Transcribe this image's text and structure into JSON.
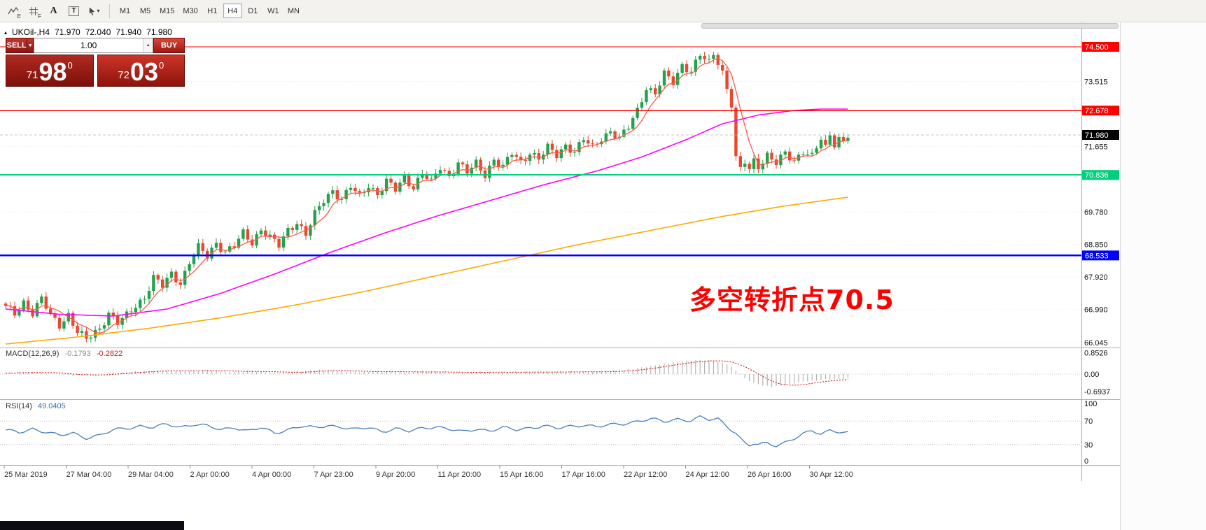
{
  "toolbar": {
    "tools": [
      {
        "id": "indicators-tool",
        "type": "zigzag",
        "sub": "E"
      },
      {
        "id": "grid-tool",
        "type": "grid",
        "sub": "F"
      },
      {
        "id": "text-tool",
        "type": "letter",
        "glyph": "A"
      },
      {
        "id": "text-label-tool",
        "type": "boxed-letter",
        "glyph": "T"
      },
      {
        "id": "cursor-tool",
        "type": "cursor-dropdown",
        "glyph": "▾"
      }
    ],
    "timeframes": [
      {
        "label": "M1",
        "active": false
      },
      {
        "label": "M5",
        "active": false
      },
      {
        "label": "M15",
        "active": false
      },
      {
        "label": "M30",
        "active": false
      },
      {
        "label": "H1",
        "active": false
      },
      {
        "label": "H4",
        "active": true
      },
      {
        "label": "D1",
        "active": false
      },
      {
        "label": "W1",
        "active": false
      },
      {
        "label": "MN",
        "active": false
      }
    ]
  },
  "chart": {
    "header": {
      "collapse_glyph": "▴",
      "symbol": "UKOil-,H4",
      "open": "71.970",
      "high": "72.040",
      "low": "71.940",
      "close": "71.980"
    },
    "trade_panel": {
      "sell_label": "SELL",
      "buy_label": "BUY",
      "volume": "1.00",
      "dropdown_glyph": "▼",
      "spinner_glyph": "▲",
      "sell_price": {
        "head": "71",
        "pips": "98",
        "sup": "0"
      },
      "buy_price": {
        "head": "72",
        "pips": "03",
        "sup": "0"
      }
    },
    "annotation": {
      "text": "多空转折点70.5",
      "color": "#ff0000"
    },
    "colors": {
      "bull": "#22a24c",
      "bear": "#e9472e",
      "ma_fast": "#ff5a46",
      "ma_mid": "#ff00ff",
      "ma_slow": "#ffaa00",
      "bid_line": "#b5b5b5"
    },
    "levels": [
      {
        "label": "74.500",
        "price": 74.5,
        "color": "#ff0000",
        "line_width": 1.4
      },
      {
        "label": "72.678",
        "price": 72.678,
        "color": "#ff0000",
        "line_width": 1.4
      },
      {
        "label": "70.836",
        "price": 70.836,
        "color": "#00d07c",
        "line_width": 2
      },
      {
        "label": "68.533",
        "price": 68.533,
        "color": "#0000ff",
        "line_width": 2.4
      }
    ],
    "current_price": {
      "label": "71.980",
      "price": 71.98
    },
    "scale_labels": [
      {
        "label": "73.515",
        "price": 73.515
      },
      {
        "label": "71.655",
        "price": 71.655
      },
      {
        "label": "69.780",
        "price": 69.78
      },
      {
        "label": "68.850",
        "price": 68.85
      },
      {
        "label": "67.920",
        "price": 67.92
      },
      {
        "label": "66.990",
        "price": 66.99
      },
      {
        "label": "66.045",
        "price": 66.045
      }
    ],
    "series": {
      "candle_count": 189,
      "close_anchors": [
        [
          0,
          67.05
        ],
        [
          2,
          66.85
        ],
        [
          4,
          67.2
        ],
        [
          6,
          66.9
        ],
        [
          8,
          67.3
        ],
        [
          10,
          66.8
        ],
        [
          12,
          66.55
        ],
        [
          14,
          66.85
        ],
        [
          16,
          66.35
        ],
        [
          18,
          66.12
        ],
        [
          21,
          66.45
        ],
        [
          23,
          66.9
        ],
        [
          25,
          66.6
        ],
        [
          27,
          66.8
        ],
        [
          29,
          67.1
        ],
        [
          31,
          67.35
        ],
        [
          33,
          67.9
        ],
        [
          35,
          67.65
        ],
        [
          37,
          68.0
        ],
        [
          39,
          67.75
        ],
        [
          41,
          68.35
        ],
        [
          43,
          68.75
        ],
        [
          45,
          68.5
        ],
        [
          47,
          68.9
        ],
        [
          49,
          68.65
        ],
        [
          51,
          68.8
        ],
        [
          53,
          69.15
        ],
        [
          55,
          68.9
        ],
        [
          57,
          69.3
        ],
        [
          59,
          69.05
        ],
        [
          61,
          68.8
        ],
        [
          63,
          69.25
        ],
        [
          65,
          69.5
        ],
        [
          67,
          69.15
        ],
        [
          69,
          69.7
        ],
        [
          71,
          70.1
        ],
        [
          73,
          70.4
        ],
        [
          75,
          70.15
        ],
        [
          77,
          70.5
        ],
        [
          79,
          70.2
        ],
        [
          81,
          70.55
        ],
        [
          83,
          70.3
        ],
        [
          85,
          70.65
        ],
        [
          87,
          70.4
        ],
        [
          89,
          70.75
        ],
        [
          91,
          70.5
        ],
        [
          93,
          70.9
        ],
        [
          95,
          70.6
        ],
        [
          97,
          71.05
        ],
        [
          99,
          70.8
        ],
        [
          101,
          71.2
        ],
        [
          103,
          70.9
        ],
        [
          105,
          71.15
        ],
        [
          107,
          70.85
        ],
        [
          109,
          71.3
        ],
        [
          111,
          71.05
        ],
        [
          113,
          71.45
        ],
        [
          115,
          71.2
        ],
        [
          117,
          71.5
        ],
        [
          119,
          71.3
        ],
        [
          121,
          71.6
        ],
        [
          123,
          71.4
        ],
        [
          125,
          71.7
        ],
        [
          127,
          71.5
        ],
        [
          129,
          71.85
        ],
        [
          131,
          71.6
        ],
        [
          133,
          71.9
        ],
        [
          135,
          72.1
        ],
        [
          137,
          71.85
        ],
        [
          139,
          72.2
        ],
        [
          141,
          72.7
        ],
        [
          143,
          73.35
        ],
        [
          145,
          73.15
        ],
        [
          147,
          73.7
        ],
        [
          149,
          73.5
        ],
        [
          151,
          74.0
        ],
        [
          153,
          73.8
        ],
        [
          155,
          74.25
        ],
        [
          157,
          74.05
        ],
        [
          158,
          74.3
        ],
        [
          159,
          74.1
        ],
        [
          160,
          73.8
        ],
        [
          161,
          73.3
        ],
        [
          162,
          72.85
        ],
        [
          163,
          71.3
        ],
        [
          164,
          70.95
        ],
        [
          165,
          71.2
        ],
        [
          166,
          71.0
        ],
        [
          167,
          71.25
        ],
        [
          168,
          71.1
        ],
        [
          170,
          71.4
        ],
        [
          172,
          71.15
        ],
        [
          174,
          71.45
        ],
        [
          176,
          71.25
        ],
        [
          178,
          71.55
        ],
        [
          180,
          71.35
        ],
        [
          182,
          71.85
        ],
        [
          183,
          71.6
        ],
        [
          184,
          72.0
        ],
        [
          185,
          71.75
        ],
        [
          186,
          71.9
        ],
        [
          187,
          71.8
        ],
        [
          188,
          71.98
        ]
      ],
      "ma_mid_anchors": [
        [
          0,
          67.0
        ],
        [
          12,
          66.85
        ],
        [
          24,
          66.8
        ],
        [
          36,
          67.0
        ],
        [
          48,
          67.45
        ],
        [
          60,
          68.0
        ],
        [
          72,
          68.6
        ],
        [
          84,
          69.15
        ],
        [
          96,
          69.65
        ],
        [
          108,
          70.1
        ],
        [
          120,
          70.55
        ],
        [
          132,
          70.95
        ],
        [
          142,
          71.35
        ],
        [
          152,
          71.85
        ],
        [
          160,
          72.3
        ],
        [
          168,
          72.55
        ],
        [
          176,
          72.68
        ],
        [
          182,
          72.72
        ],
        [
          188,
          72.72
        ]
      ],
      "ma_slow_anchors": [
        [
          0,
          66.0
        ],
        [
          16,
          66.2
        ],
        [
          32,
          66.45
        ],
        [
          48,
          66.75
        ],
        [
          64,
          67.1
        ],
        [
          80,
          67.5
        ],
        [
          96,
          67.95
        ],
        [
          112,
          68.4
        ],
        [
          128,
          68.85
        ],
        [
          144,
          69.25
        ],
        [
          160,
          69.65
        ],
        [
          174,
          69.95
        ],
        [
          188,
          70.2
        ]
      ]
    }
  },
  "macd": {
    "name": "MACD(12,26,9)",
    "value_main": "-0.1793",
    "value_signal": "-0.2822",
    "axis": [
      {
        "label": "0.8526",
        "value": 0.8526
      },
      {
        "label": "0.00",
        "value": 0
      },
      {
        "label": "-0.6937",
        "value": -0.6937
      }
    ],
    "hist_color": "#b4b4b4",
    "signal_color": "#d40000",
    "hist_anchors": [
      [
        0,
        0.03
      ],
      [
        5,
        0.09
      ],
      [
        10,
        0.02
      ],
      [
        15,
        -0.06
      ],
      [
        20,
        -0.02
      ],
      [
        25,
        0.06
      ],
      [
        30,
        0.11
      ],
      [
        35,
        0.15
      ],
      [
        40,
        0.11
      ],
      [
        45,
        0.16
      ],
      [
        50,
        0.08
      ],
      [
        55,
        0.13
      ],
      [
        60,
        0.04
      ],
      [
        65,
        0.1
      ],
      [
        70,
        0.16
      ],
      [
        75,
        0.12
      ],
      [
        80,
        0.08
      ],
      [
        85,
        0.11
      ],
      [
        90,
        0.07
      ],
      [
        95,
        0.1
      ],
      [
        100,
        0.05
      ],
      [
        105,
        0.09
      ],
      [
        110,
        0.06
      ],
      [
        115,
        0.09
      ],
      [
        120,
        0.07
      ],
      [
        125,
        0.1
      ],
      [
        130,
        0.08
      ],
      [
        135,
        0.12
      ],
      [
        140,
        0.2
      ],
      [
        144,
        0.32
      ],
      [
        148,
        0.44
      ],
      [
        152,
        0.52
      ],
      [
        155,
        0.56
      ],
      [
        158,
        0.52
      ],
      [
        161,
        0.4
      ],
      [
        163,
        0.15
      ],
      [
        165,
        -0.18
      ],
      [
        167,
        -0.35
      ],
      [
        169,
        -0.45
      ],
      [
        171,
        -0.5
      ],
      [
        173,
        -0.46
      ],
      [
        175,
        -0.4
      ],
      [
        177,
        -0.33
      ],
      [
        179,
        -0.28
      ],
      [
        181,
        -0.25
      ],
      [
        183,
        -0.22
      ],
      [
        185,
        -0.2
      ],
      [
        188,
        -0.18
      ]
    ]
  },
  "rsi": {
    "name": "RSI(14)",
    "value": "49.0405",
    "axis": [
      {
        "label": "100",
        "value": 100
      },
      {
        "label": "70",
        "value": 70
      },
      {
        "label": "30",
        "value": 30
      },
      {
        "label": "0",
        "value": 0
      }
    ],
    "dotted_levels": [
      70,
      30
    ],
    "line_color": "#4a7ebb",
    "anchors": [
      [
        0,
        54
      ],
      [
        3,
        50
      ],
      [
        6,
        57
      ],
      [
        9,
        52
      ],
      [
        12,
        45
      ],
      [
        15,
        49
      ],
      [
        18,
        42
      ],
      [
        21,
        46
      ],
      [
        24,
        54
      ],
      [
        27,
        58
      ],
      [
        30,
        62
      ],
      [
        33,
        59
      ],
      [
        36,
        64
      ],
      [
        39,
        60
      ],
      [
        42,
        65
      ],
      [
        45,
        61
      ],
      [
        48,
        55
      ],
      [
        51,
        60
      ],
      [
        54,
        53
      ],
      [
        57,
        58
      ],
      [
        60,
        50
      ],
      [
        63,
        56
      ],
      [
        66,
        61
      ],
      [
        69,
        58
      ],
      [
        72,
        63
      ],
      [
        75,
        60
      ],
      [
        78,
        55
      ],
      [
        81,
        59
      ],
      [
        84,
        53
      ],
      [
        87,
        57
      ],
      [
        90,
        52
      ],
      [
        93,
        58
      ],
      [
        96,
        61
      ],
      [
        99,
        56
      ],
      [
        102,
        51
      ],
      [
        105,
        57
      ],
      [
        108,
        54
      ],
      [
        111,
        58
      ],
      [
        114,
        55
      ],
      [
        117,
        59
      ],
      [
        120,
        62
      ],
      [
        123,
        57
      ],
      [
        126,
        61
      ],
      [
        129,
        64
      ],
      [
        132,
        60
      ],
      [
        135,
        63
      ],
      [
        138,
        66
      ],
      [
        141,
        70
      ],
      [
        144,
        73
      ],
      [
        147,
        69
      ],
      [
        150,
        74
      ],
      [
        153,
        71
      ],
      [
        155,
        76
      ],
      [
        157,
        72
      ],
      [
        159,
        74
      ],
      [
        161,
        62
      ],
      [
        163,
        50
      ],
      [
        164,
        40
      ],
      [
        165,
        32
      ],
      [
        166,
        28
      ],
      [
        167,
        31
      ],
      [
        168,
        29
      ],
      [
        170,
        33
      ],
      [
        172,
        29
      ],
      [
        174,
        34
      ],
      [
        176,
        40
      ],
      [
        178,
        47
      ],
      [
        180,
        53
      ],
      [
        182,
        49
      ],
      [
        184,
        55
      ],
      [
        186,
        52
      ],
      [
        188,
        49
      ]
    ]
  },
  "time_axis": {
    "labels": [
      "25 Mar 2019",
      "27 Mar 04:00",
      "29 Mar 04:00",
      "2 Apr 00:00",
      "4 Apr 00:00",
      "7 Apr 23:00",
      "9 Apr 20:00",
      "11 Apr 20:00",
      "15 Apr 16:00",
      "17 Apr 16:00",
      "22 Apr 12:00",
      "24 Apr 12:00",
      "26 Apr 16:00",
      "30 Apr 12:00"
    ]
  },
  "chart_data": {
    "type": "candlestick",
    "symbol": "UKOil-",
    "timeframe": "H4",
    "current_ohlc": {
      "open": 71.97,
      "high": 72.04,
      "low": 71.94,
      "close": 71.98
    },
    "bid": 71.98,
    "ask": 72.03,
    "key_levels": [
      74.5,
      72.678,
      70.836,
      68.533
    ],
    "indicators": [
      {
        "name": "MACD(12,26,9)",
        "values": [
          -0.1793,
          -0.2822
        ]
      },
      {
        "name": "RSI(14)",
        "values": [
          49.0405
        ]
      }
    ],
    "visible_range": [
      "25 Mar 2019",
      "30 Apr 2019"
    ],
    "price_axis_range": [
      66.045,
      74.5
    ]
  }
}
